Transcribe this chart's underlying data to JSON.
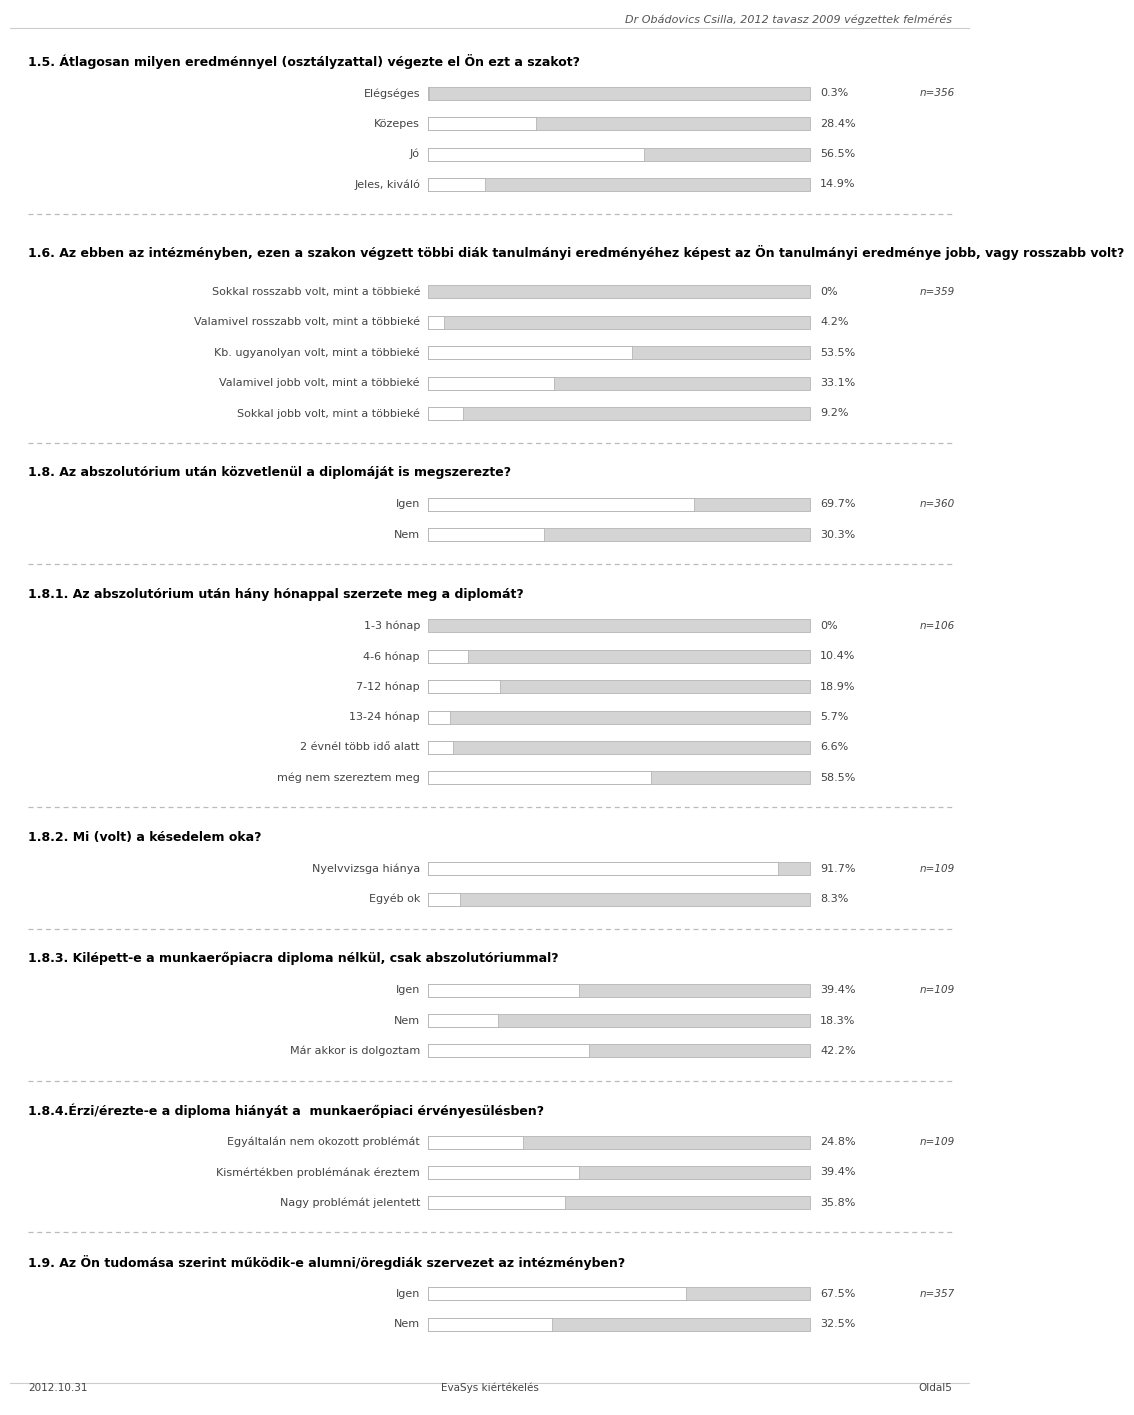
{
  "header": "Dr Obádovics Csilla, 2012 tavasz 2009 végzettek felmérés",
  "footer_left": "2012.10.31",
  "footer_center": "EvaSys kiértékelés",
  "footer_right": "Oldal5",
  "sections": [
    {
      "title": "1.5. Átlagosan milyen eredménnyel (osztályzattal) végezte el Ön ezt a szakot?",
      "n_label": "n=356",
      "title_lines": 1,
      "items": [
        {
          "label": "Elégséges",
          "value": 0.3,
          "pct": "0.3%"
        },
        {
          "label": "Közepes",
          "value": 28.4,
          "pct": "28.4%"
        },
        {
          "label": "Jó",
          "value": 56.5,
          "pct": "56.5%"
        },
        {
          "label": "Jeles, kiváló",
          "value": 14.9,
          "pct": "14.9%"
        }
      ]
    },
    {
      "title": "1.6. Az ebben az intézményben, ezen a szakon végzett többi diák tanulmányi eredményéhez képest az Ön tanulmányi eredménye jobb, vagy rosszabb volt?",
      "n_label": "n=359",
      "title_lines": 2,
      "items": [
        {
          "label": "Sokkal rosszabb volt, mint a többieké",
          "value": 0.0,
          "pct": "0%"
        },
        {
          "label": "Valamivel rosszabb volt, mint a többieké",
          "value": 4.2,
          "pct": "4.2%"
        },
        {
          "label": "Kb. ugyanolyan volt, mint a többieké",
          "value": 53.5,
          "pct": "53.5%"
        },
        {
          "label": "Valamivel jobb volt, mint a többieké",
          "value": 33.1,
          "pct": "33.1%"
        },
        {
          "label": "Sokkal jobb volt, mint a többieké",
          "value": 9.2,
          "pct": "9.2%"
        }
      ]
    },
    {
      "title": "1.8. Az abszolutórium után közvetlenül a diplomáját is megszerezte?",
      "n_label": "n=360",
      "title_lines": 1,
      "items": [
        {
          "label": "Igen",
          "value": 69.7,
          "pct": "69.7%"
        },
        {
          "label": "Nem",
          "value": 30.3,
          "pct": "30.3%"
        }
      ]
    },
    {
      "title": "1.8.1. Az abszolutórium után hány hónappal szerzete meg a diplomát?",
      "n_label": "n=106",
      "title_lines": 1,
      "items": [
        {
          "label": "1-3 hónap",
          "value": 0.0,
          "pct": "0%"
        },
        {
          "label": "4-6 hónap",
          "value": 10.4,
          "pct": "10.4%"
        },
        {
          "label": "7-12 hónap",
          "value": 18.9,
          "pct": "18.9%"
        },
        {
          "label": "13-24 hónap",
          "value": 5.7,
          "pct": "5.7%"
        },
        {
          "label": "2 évnél több idő alatt",
          "value": 6.6,
          "pct": "6.6%"
        },
        {
          "label": "még nem szereztem meg",
          "value": 58.5,
          "pct": "58.5%"
        }
      ]
    },
    {
      "title": "1.8.2. Mi (volt) a késedelem oka?",
      "n_label": "n=109",
      "title_lines": 1,
      "items": [
        {
          "label": "Nyelvvizsga hiánya",
          "value": 91.7,
          "pct": "91.7%"
        },
        {
          "label": "Egyéb ok",
          "value": 8.3,
          "pct": "8.3%"
        }
      ]
    },
    {
      "title": "1.8.3. Kilépett-e a munkaerőpiacra diploma nélkül, csak abszolutóriummal?",
      "n_label": "n=109",
      "title_lines": 1,
      "items": [
        {
          "label": "Igen",
          "value": 39.4,
          "pct": "39.4%"
        },
        {
          "label": "Nem",
          "value": 18.3,
          "pct": "18.3%"
        },
        {
          "label": "Már akkor is dolgoztam",
          "value": 42.2,
          "pct": "42.2%"
        }
      ]
    },
    {
      "title": "1.8.4.Érzi/érezte-e a diploma hiányát a  munkaerőpiaci érvényesülésben?",
      "n_label": "n=109",
      "title_lines": 1,
      "items": [
        {
          "label": "Egyáltalán nem okozott problémát",
          "value": 24.8,
          "pct": "24.8%"
        },
        {
          "label": "Kismértékben problémának éreztem",
          "value": 39.4,
          "pct": "39.4%"
        },
        {
          "label": "Nagy problémát jelentett",
          "value": 35.8,
          "pct": "35.8%"
        }
      ]
    },
    {
      "title": "1.9. Az Ön tudomása szerint működik-e alumni/öregdiák szervezet az intézményben?",
      "n_label": "n=357",
      "title_lines": 1,
      "items": [
        {
          "label": "Igen",
          "value": 67.5,
          "pct": "67.5%"
        },
        {
          "label": "Nem",
          "value": 32.5,
          "pct": "32.5%"
        }
      ]
    }
  ],
  "bar_bg_color": "#d4d4d4",
  "bar_fg_color": "#ffffff",
  "bar_border_color": "#aaaaaa",
  "sep_color": "#bbbbbb",
  "text_color": "#444444",
  "title_color": "#000000",
  "header_color": "#555555",
  "label_fontsize": 8.0,
  "title_fontsize": 9.0,
  "pct_fontsize": 8.0,
  "n_fontsize": 7.5,
  "header_fontsize": 8.0,
  "footer_fontsize": 7.5
}
